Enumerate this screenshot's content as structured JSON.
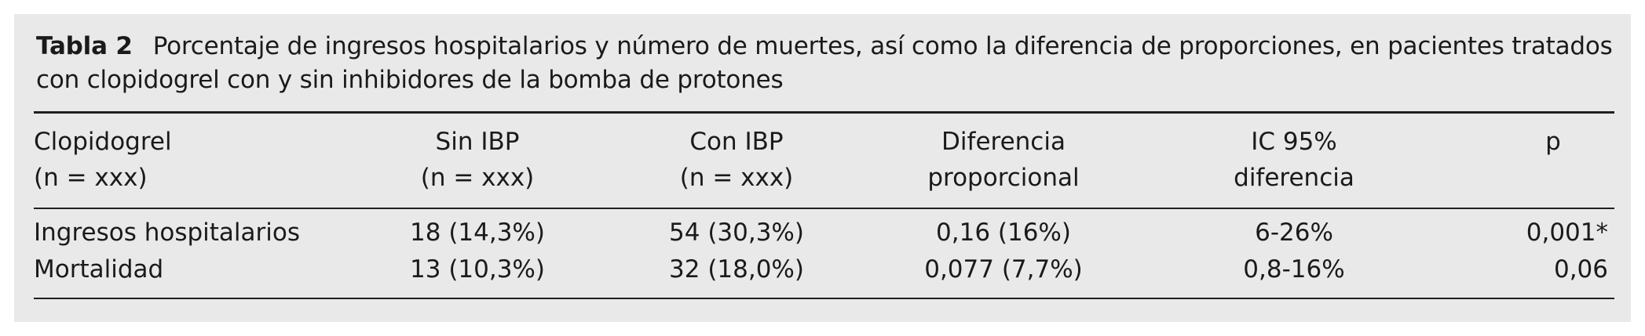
{
  "caption": {
    "label": "Tabla 2",
    "text": "Porcentaje de ingresos hospitalarios y número de muertes, así como la diferencia de proporciones, en pacientes tratados con clopidogrel con y sin inhibidores de la bomba de protones"
  },
  "headers": [
    {
      "line1": "Clopidogrel",
      "line2": "(n = xxx)"
    },
    {
      "line1": "Sin IBP",
      "line2": "(n = xxx)"
    },
    {
      "line1": "Con IBP",
      "line2": "(n = xxx)"
    },
    {
      "line1": "Diferencia",
      "line2": "proporcional"
    },
    {
      "line1": "IC 95%",
      "line2": "diferencia"
    },
    {
      "line1": "p",
      "line2": ""
    }
  ],
  "rows": [
    [
      "Ingresos hospitalarios",
      "18 (14,3%)",
      "54 (30,3%)",
      "0,16 (16%)",
      "6-26%",
      "0,001*"
    ],
    [
      "Mortalidad",
      "13 (10,3%)",
      "32 (18,0%)",
      "0,077 (7,7%)",
      "0,8-16%",
      "0,06"
    ]
  ]
}
